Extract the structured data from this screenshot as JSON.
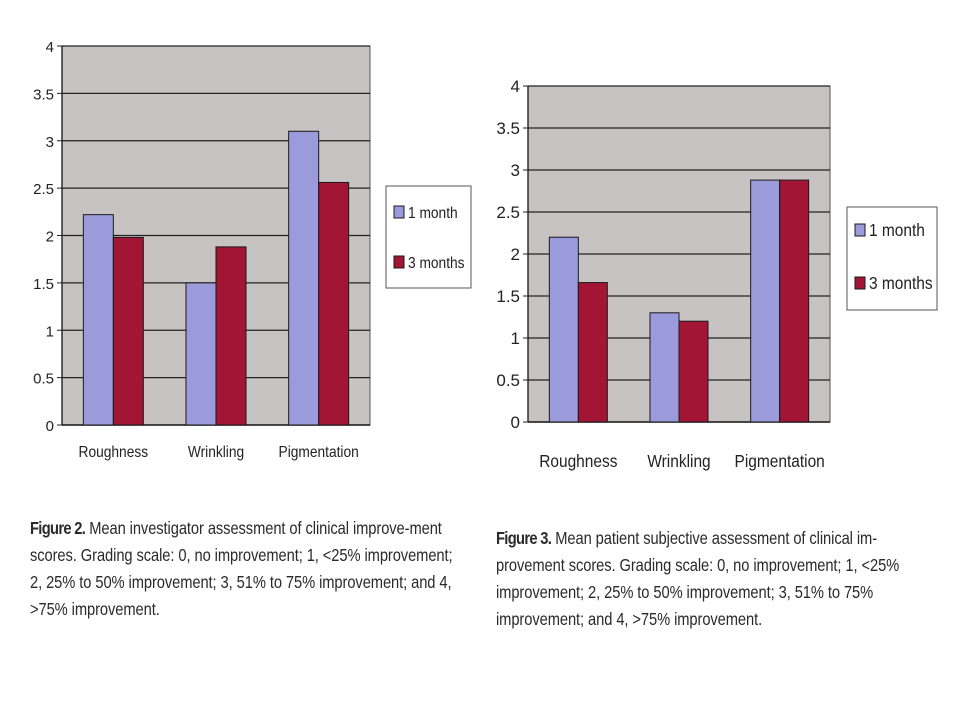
{
  "chart_data": [
    {
      "type": "bar",
      "categories": [
        "Roughness",
        "Wrinkling",
        "Pigmentation"
      ],
      "series": [
        {
          "name": "1 month",
          "values": [
            2.22,
            1.5,
            3.1
          ],
          "color": "#9b9bdc"
        },
        {
          "name": "3 months",
          "values": [
            1.98,
            1.88,
            2.56
          ],
          "color": "#a31534"
        }
      ],
      "yticks": [
        "0",
        "0.5",
        "1",
        "1.5",
        "2",
        "2.5",
        "3",
        "3.5",
        "4"
      ],
      "ylim": [
        0,
        4
      ],
      "grid": true,
      "legend": "right",
      "plot_background": "#c8c3c3",
      "caption_label": "Figure 2.",
      "caption_text": "Mean investigator assessment of clinical improve-ment scores. Grading scale: 0, no improvement; 1, <25% improvement; 2, 25% to 50% improvement; 3, 51% to 75% improvement; and 4, >75% improvement."
    },
    {
      "type": "bar",
      "categories": [
        "Roughness",
        "Wrinkling",
        "Pigmentation"
      ],
      "series": [
        {
          "name": "1 month",
          "values": [
            2.2,
            1.3,
            2.88
          ],
          "color": "#9b9bdc"
        },
        {
          "name": "3 months",
          "values": [
            1.66,
            1.2,
            2.88
          ],
          "color": "#a31534"
        }
      ],
      "yticks": [
        "0",
        "0.5",
        "1",
        "1.5",
        "2",
        "2.5",
        "3",
        "3.5",
        "4"
      ],
      "ylim": [
        0,
        4
      ],
      "grid": true,
      "legend": "right",
      "plot_background": "#c8c3c3",
      "caption_label": "Figure 3.",
      "caption_text": "Mean patient subjective assessment of clinical im-provement scores. Grading scale: 0, no improvement; 1, <25% improvement; 2, 25% to 50% improvement; 3, 51% to 75% improvement; and 4, >75% improvement."
    }
  ]
}
